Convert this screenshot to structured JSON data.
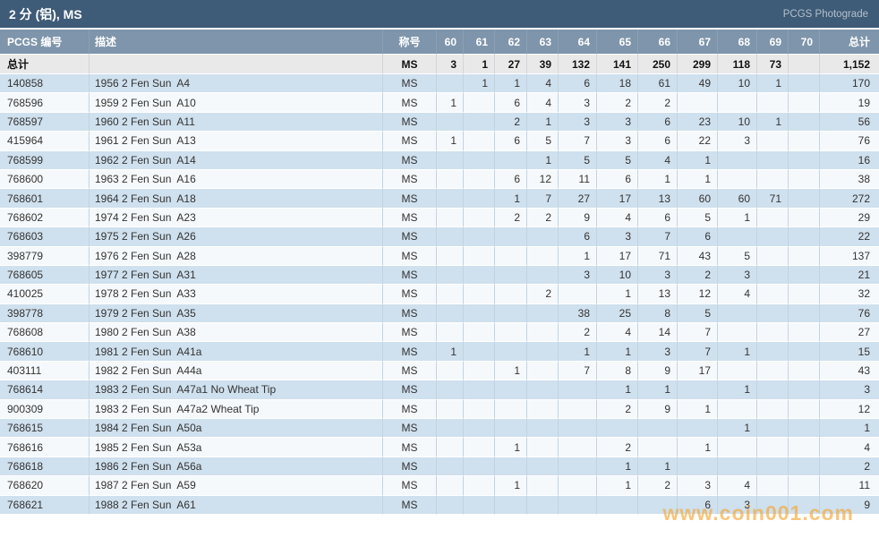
{
  "header": {
    "title": "2 分 (铝), MS",
    "right_label": "PCGS Photograde"
  },
  "colors": {
    "title_bar": "#3e5b77",
    "column_header": "#7e95ab",
    "totals_row": "#e9e9e9",
    "row_blue": "#cfe0ee",
    "row_white": "#f6f9fc",
    "pcgs_id_text": "#b5744d",
    "watermark_orange": "#f5a32a"
  },
  "watermark": {
    "text": "www.coin001.com"
  },
  "chart_data": {
    "type": "table",
    "title": "2 分 (铝), MS population by grade",
    "grade_columns": [
      "60",
      "61",
      "62",
      "63",
      "64",
      "65",
      "66",
      "67",
      "68",
      "69",
      "70"
    ],
    "totals": {
      "label": "总计",
      "designation": "MS",
      "grades": [
        "3",
        "1",
        "27",
        "39",
        "132",
        "141",
        "250",
        "299",
        "118",
        "73",
        ""
      ],
      "total": "1,152"
    }
  },
  "table": {
    "columns": [
      "PCGS 编号",
      "描述",
      "称号",
      "60",
      "61",
      "62",
      "63",
      "64",
      "65",
      "66",
      "67",
      "68",
      "69",
      "70",
      "总计"
    ],
    "grade_columns": [
      "60",
      "61",
      "62",
      "63",
      "64",
      "65",
      "66",
      "67",
      "68",
      "69",
      "70"
    ],
    "totals_row": {
      "id": "总计",
      "desc": "",
      "designation": "MS",
      "grades": [
        "3",
        "1",
        "27",
        "39",
        "132",
        "141",
        "250",
        "299",
        "118",
        "73",
        ""
      ],
      "total": "1,152"
    },
    "rows": [
      {
        "id": "140858",
        "desc": "1956 2 Fen Sun  A4",
        "designation": "MS",
        "grades": [
          "",
          "1",
          "1",
          "4",
          "6",
          "18",
          "61",
          "49",
          "10",
          "1",
          ""
        ],
        "total": "170"
      },
      {
        "id": "768596",
        "desc": "1959 2 Fen Sun  A10",
        "designation": "MS",
        "grades": [
          "1",
          "",
          "6",
          "4",
          "3",
          "2",
          "2",
          "",
          "",
          "",
          ""
        ],
        "total": "19"
      },
      {
        "id": "768597",
        "desc": "1960 2 Fen Sun  A11",
        "designation": "MS",
        "grades": [
          "",
          "",
          "2",
          "1",
          "3",
          "3",
          "6",
          "23",
          "10",
          "1",
          ""
        ],
        "total": "56"
      },
      {
        "id": "415964",
        "desc": "1961 2 Fen Sun  A13",
        "designation": "MS",
        "grades": [
          "1",
          "",
          "6",
          "5",
          "7",
          "3",
          "6",
          "22",
          "3",
          "",
          ""
        ],
        "total": "76"
      },
      {
        "id": "768599",
        "desc": "1962 2 Fen Sun  A14",
        "designation": "MS",
        "grades": [
          "",
          "",
          "",
          "1",
          "5",
          "5",
          "4",
          "1",
          "",
          "",
          ""
        ],
        "total": "16"
      },
      {
        "id": "768600",
        "desc": "1963 2 Fen Sun  A16",
        "designation": "MS",
        "grades": [
          "",
          "",
          "6",
          "12",
          "11",
          "6",
          "1",
          "1",
          "",
          "",
          ""
        ],
        "total": "38"
      },
      {
        "id": "768601",
        "desc": "1964 2 Fen Sun  A18",
        "designation": "MS",
        "grades": [
          "",
          "",
          "1",
          "7",
          "27",
          "17",
          "13",
          "60",
          "60",
          "71",
          ""
        ],
        "total": "272"
      },
      {
        "id": "768602",
        "desc": "1974 2 Fen Sun  A23",
        "designation": "MS",
        "grades": [
          "",
          "",
          "2",
          "2",
          "9",
          "4",
          "6",
          "5",
          "1",
          "",
          ""
        ],
        "total": "29"
      },
      {
        "id": "768603",
        "desc": "1975 2 Fen Sun  A26",
        "designation": "MS",
        "grades": [
          "",
          "",
          "",
          "",
          "6",
          "3",
          "7",
          "6",
          "",
          "",
          ""
        ],
        "total": "22"
      },
      {
        "id": "398779",
        "desc": "1976 2 Fen Sun  A28",
        "designation": "MS",
        "grades": [
          "",
          "",
          "",
          "",
          "1",
          "17",
          "71",
          "43",
          "5",
          "",
          ""
        ],
        "total": "137"
      },
      {
        "id": "768605",
        "desc": "1977 2 Fen Sun  A31",
        "designation": "MS",
        "grades": [
          "",
          "",
          "",
          "",
          "3",
          "10",
          "3",
          "2",
          "3",
          "",
          ""
        ],
        "total": "21"
      },
      {
        "id": "410025",
        "desc": "1978 2 Fen Sun  A33",
        "designation": "MS",
        "grades": [
          "",
          "",
          "",
          "2",
          "",
          "1",
          "13",
          "12",
          "4",
          "",
          ""
        ],
        "total": "32"
      },
      {
        "id": "398778",
        "desc": "1979 2 Fen Sun  A35",
        "designation": "MS",
        "grades": [
          "",
          "",
          "",
          "",
          "38",
          "25",
          "8",
          "5",
          "",
          "",
          ""
        ],
        "total": "76"
      },
      {
        "id": "768608",
        "desc": "1980 2 Fen Sun  A38",
        "designation": "MS",
        "grades": [
          "",
          "",
          "",
          "",
          "2",
          "4",
          "14",
          "7",
          "",
          "",
          ""
        ],
        "total": "27"
      },
      {
        "id": "768610",
        "desc": "1981 2 Fen Sun  A41a",
        "designation": "MS",
        "grades": [
          "1",
          "",
          "",
          "",
          "1",
          "1",
          "3",
          "7",
          "1",
          "",
          ""
        ],
        "total": "15"
      },
      {
        "id": "403111",
        "desc": "1982 2 Fen Sun  A44a",
        "designation": "MS",
        "grades": [
          "",
          "",
          "1",
          "",
          "7",
          "8",
          "9",
          "17",
          "",
          "",
          ""
        ],
        "total": "43"
      },
      {
        "id": "768614",
        "desc": "1983 2 Fen Sun  A47a1 No Wheat Tip",
        "designation": "MS",
        "grades": [
          "",
          "",
          "",
          "",
          "",
          "1",
          "1",
          "",
          "1",
          "",
          ""
        ],
        "total": "3"
      },
      {
        "id": "900309",
        "desc": "1983 2 Fen Sun  A47a2 Wheat Tip",
        "designation": "MS",
        "grades": [
          "",
          "",
          "",
          "",
          "",
          "2",
          "9",
          "1",
          "",
          "",
          ""
        ],
        "total": "12"
      },
      {
        "id": "768615",
        "desc": "1984 2 Fen Sun  A50a",
        "designation": "MS",
        "grades": [
          "",
          "",
          "",
          "",
          "",
          "",
          "",
          "",
          "1",
          "",
          ""
        ],
        "total": "1"
      },
      {
        "id": "768616",
        "desc": "1985 2 Fen Sun  A53a",
        "designation": "MS",
        "grades": [
          "",
          "",
          "1",
          "",
          "",
          "2",
          "",
          "1",
          "",
          "",
          ""
        ],
        "total": "4"
      },
      {
        "id": "768618",
        "desc": "1986 2 Fen Sun  A56a",
        "designation": "MS",
        "grades": [
          "",
          "",
          "",
          "",
          "",
          "1",
          "1",
          "",
          "",
          "",
          ""
        ],
        "total": "2"
      },
      {
        "id": "768620",
        "desc": "1987 2 Fen Sun  A59",
        "designation": "MS",
        "grades": [
          "",
          "",
          "1",
          "",
          "",
          "1",
          "2",
          "3",
          "4",
          "",
          ""
        ],
        "total": "11"
      },
      {
        "id": "768621",
        "desc": "1988 2 Fen Sun  A61",
        "designation": "MS",
        "grades": [
          "",
          "",
          "",
          "",
          "",
          "",
          "",
          "6",
          "3",
          "",
          ""
        ],
        "total": "9"
      }
    ]
  }
}
